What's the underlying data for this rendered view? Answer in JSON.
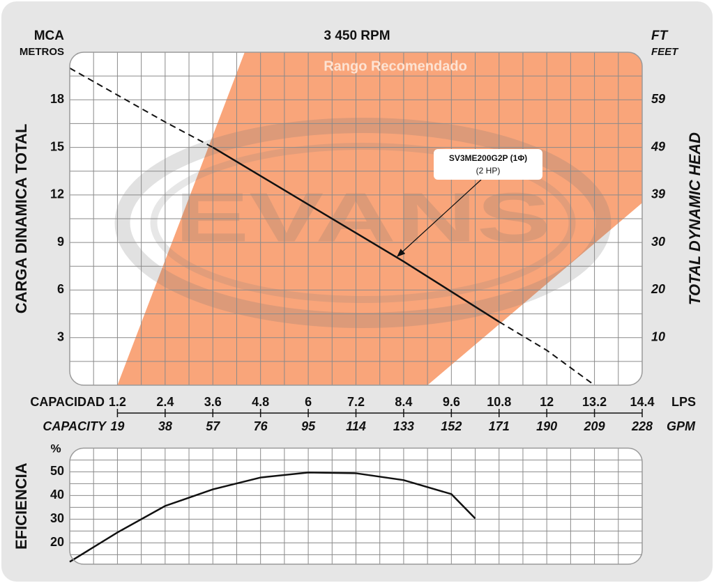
{
  "chart_data": [
    {
      "type": "line",
      "title": "3 450 RPM",
      "y_unit": "MCA",
      "y_unit_sub": "METROS",
      "y2_unit": "FT",
      "y2_unit_sub": "FEET",
      "ylabel": "CARGA  DINAMICA  TOTAL",
      "y2label": "TOTAL  DYNAMIC  HEAD",
      "x_caption": "CAPACIDAD",
      "x_unit": "LPS",
      "x2_caption": "CAPACITY",
      "x2_unit": "GPM",
      "x": [
        0,
        1.2,
        2.4,
        3.6,
        4.8,
        6,
        7.2,
        8.4,
        9.6,
        10.8,
        12,
        13.2
      ],
      "xlim": [
        0,
        14.4
      ],
      "xticks": [
        1.2,
        2.4,
        3.6,
        4.8,
        6,
        7.2,
        8.4,
        9.6,
        10.8,
        12,
        13.2,
        14.4
      ],
      "x2lim": [
        0,
        228
      ],
      "x2ticks": [
        19,
        38,
        57,
        76,
        95,
        114,
        133,
        152,
        171,
        190,
        209,
        228
      ],
      "ylim": [
        0,
        21
      ],
      "yticks": [
        3,
        6,
        9,
        12,
        15,
        18
      ],
      "y2lim": [
        0,
        68.9
      ],
      "y2ticks": [
        {
          "value": 9.84,
          "label": "10"
        },
        {
          "value": 19.69,
          "label": "20"
        },
        {
          "value": 29.53,
          "label": "30"
        },
        {
          "value": 39.37,
          "label": "39"
        },
        {
          "value": 49.21,
          "label": "49"
        },
        {
          "value": 59.06,
          "label": "59"
        }
      ],
      "grid": true,
      "series": [
        {
          "name": "SV3ME200G2P (1Φ)",
          "color": "#111111",
          "values": [
            null,
            null,
            null,
            15,
            13.2,
            11.4,
            9.6,
            7.8,
            5.9,
            4,
            null,
            null
          ]
        },
        {
          "color": "#111111",
          "dash": true,
          "values": [
            20,
            18.3,
            16.6,
            15,
            null,
            null,
            null,
            null,
            null,
            4,
            2.2,
            0
          ]
        }
      ],
      "annotation": "(2 HP)",
      "recommended_range": {
        "label": "Rango Recomendado",
        "color": "#f9a57a",
        "x": [
          1.2,
          4.4,
          14.4,
          14.4,
          9.0
        ],
        "y": [
          0,
          21,
          21,
          11.5,
          0
        ]
      },
      "watermark": "EVANS"
    },
    {
      "type": "line",
      "ylabel": "EFICIENCIA",
      "y_unit": "%",
      "x": [
        0,
        1.2,
        2.4,
        3.6,
        4.8,
        6,
        7.2,
        8.4,
        9.6,
        10.2
      ],
      "xlim": [
        0,
        14.4
      ],
      "xticks": [
        1.2,
        2.4,
        3.6,
        4.8,
        6,
        7.2,
        8.4,
        9.6,
        10.8,
        12,
        13.2,
        14.4
      ],
      "ylim": [
        11,
        60
      ],
      "yticks": [
        20,
        30,
        40,
        50
      ],
      "grid": true,
      "series": [
        {
          "color": "#111111",
          "values": [
            12,
            24.4,
            35.6,
            42.6,
            47.6,
            49.7,
            49.4,
            46.5,
            40.6,
            30.3
          ]
        }
      ]
    }
  ]
}
